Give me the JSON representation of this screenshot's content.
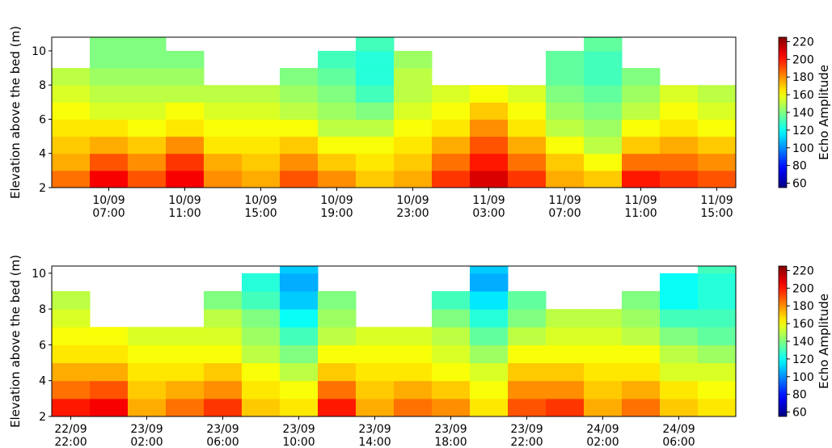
{
  "chart_data": [
    {
      "type": "heatmap",
      "ylabel": "Elevation above the bed (m)",
      "x": [
        "10/09 05:00",
        "10/09 07:00",
        "10/09 09:00",
        "10/09 11:00",
        "10/09 13:00",
        "10/09 15:00",
        "10/09 17:00",
        "10/09 19:00",
        "10/09 21:00",
        "10/09 23:00",
        "11/09 01:00",
        "11/09 03:00",
        "11/09 05:00",
        "11/09 07:00",
        "11/09 09:00",
        "11/09 11:00",
        "11/09 13:00",
        "11/09 15:00"
      ],
      "xticks": [
        "10/09 07:00",
        "10/09 11:00",
        "10/09 15:00",
        "10/09 19:00",
        "10/09 23:00",
        "11/09 03:00",
        "11/09 07:00",
        "11/09 11:00",
        "11/09 15:00"
      ],
      "y": [
        2.5,
        3.5,
        4.5,
        5.5,
        6.5,
        7.5,
        8.5,
        9.5,
        10.5
      ],
      "ylim": [
        2,
        10.8
      ],
      "yticks": [
        2,
        4,
        6,
        8,
        10
      ],
      "values": [
        [
          185,
          175,
          170,
          165,
          160,
          155,
          150,
          null,
          null
        ],
        [
          205,
          190,
          175,
          165,
          155,
          150,
          145,
          140,
          140
        ],
        [
          190,
          180,
          170,
          160,
          155,
          150,
          145,
          140,
          140
        ],
        [
          205,
          195,
          180,
          165,
          160,
          150,
          145,
          140,
          null
        ],
        [
          180,
          175,
          165,
          160,
          155,
          150,
          null,
          null,
          null
        ],
        [
          175,
          170,
          165,
          160,
          155,
          150,
          null,
          null,
          null
        ],
        [
          190,
          180,
          170,
          160,
          150,
          145,
          140,
          null,
          null
        ],
        [
          180,
          170,
          160,
          150,
          145,
          140,
          135,
          130,
          null
        ],
        [
          170,
          165,
          160,
          150,
          140,
          130,
          125,
          125,
          130
        ],
        [
          175,
          170,
          165,
          160,
          155,
          150,
          150,
          145,
          null
        ],
        [
          195,
          185,
          175,
          165,
          160,
          155,
          null,
          null,
          null
        ],
        [
          210,
          200,
          190,
          180,
          170,
          160,
          null,
          null,
          null
        ],
        [
          195,
          185,
          175,
          165,
          160,
          155,
          null,
          null,
          null
        ],
        [
          175,
          170,
          160,
          150,
          145,
          140,
          135,
          135,
          null
        ],
        [
          170,
          160,
          150,
          145,
          140,
          135,
          130,
          130,
          135
        ],
        [
          200,
          185,
          170,
          160,
          150,
          145,
          140,
          null,
          null
        ],
        [
          195,
          185,
          175,
          165,
          160,
          155,
          null,
          null,
          null
        ],
        [
          190,
          180,
          170,
          160,
          155,
          150,
          null,
          null,
          null
        ]
      ],
      "colormap": "jet",
      "clim": [
        55,
        225
      ],
      "cbar_ticks": [
        60,
        80,
        100,
        120,
        140,
        160,
        180,
        200,
        220
      ],
      "cbar_label": "Echo Amplitude"
    },
    {
      "type": "heatmap",
      "ylabel": "Elevation above the bed (m)",
      "x": [
        "22/09 22:00",
        "23/09 00:00",
        "23/09 02:00",
        "23/09 04:00",
        "23/09 06:00",
        "23/09 08:00",
        "23/09 10:00",
        "23/09 12:00",
        "23/09 14:00",
        "23/09 16:00",
        "23/09 18:00",
        "23/09 20:00",
        "23/09 22:00",
        "24/09 00:00",
        "24/09 02:00",
        "24/09 04:00",
        "24/09 06:00",
        "24/09 08:00"
      ],
      "xticks": [
        "22/09 22:00",
        "23/09 02:00",
        "23/09 06:00",
        "23/09 10:00",
        "23/09 14:00",
        "23/09 18:00",
        "23/09 22:00",
        "24/09 02:00",
        "24/09 06:00"
      ],
      "y": [
        2.5,
        3.5,
        4.5,
        5.5,
        6.5,
        7.5,
        8.5,
        9.5,
        10.5
      ],
      "ylim": [
        2,
        10.4
      ],
      "yticks": [
        2,
        4,
        6,
        8,
        10
      ],
      "values": [
        [
          200,
          185,
          175,
          165,
          160,
          155,
          150,
          null,
          null
        ],
        [
          205,
          190,
          175,
          165,
          160,
          null,
          null,
          null,
          null
        ],
        [
          175,
          170,
          165,
          160,
          155,
          null,
          null,
          null,
          null
        ],
        [
          185,
          175,
          165,
          160,
          155,
          null,
          null,
          null,
          null
        ],
        [
          195,
          180,
          170,
          160,
          155,
          150,
          140,
          null,
          null
        ],
        [
          170,
          165,
          160,
          150,
          145,
          140,
          130,
          125,
          null
        ],
        [
          165,
          160,
          150,
          140,
          130,
          120,
          110,
          105,
          110
        ],
        [
          200,
          185,
          170,
          160,
          150,
          145,
          140,
          null,
          null
        ],
        [
          175,
          170,
          165,
          160,
          155,
          null,
          null,
          null,
          null
        ],
        [
          185,
          175,
          165,
          160,
          155,
          null,
          null,
          null,
          null
        ],
        [
          180,
          170,
          160,
          155,
          150,
          140,
          130,
          null,
          null
        ],
        [
          165,
          160,
          155,
          145,
          135,
          125,
          115,
          105,
          110
        ],
        [
          190,
          180,
          170,
          160,
          150,
          140,
          135,
          null,
          null
        ],
        [
          195,
          180,
          170,
          160,
          155,
          150,
          null,
          null,
          null
        ],
        [
          175,
          170,
          165,
          160,
          155,
          150,
          null,
          null,
          null
        ],
        [
          185,
          175,
          165,
          160,
          150,
          145,
          140,
          null,
          null
        ],
        [
          170,
          165,
          155,
          150,
          140,
          130,
          120,
          120,
          null
        ],
        [
          165,
          160,
          155,
          145,
          135,
          130,
          125,
          125,
          130
        ]
      ],
      "colormap": "jet",
      "clim": [
        55,
        225
      ],
      "cbar_ticks": [
        60,
        80,
        100,
        120,
        140,
        160,
        180,
        200,
        220
      ],
      "cbar_label": "Echo Amplitude"
    }
  ]
}
